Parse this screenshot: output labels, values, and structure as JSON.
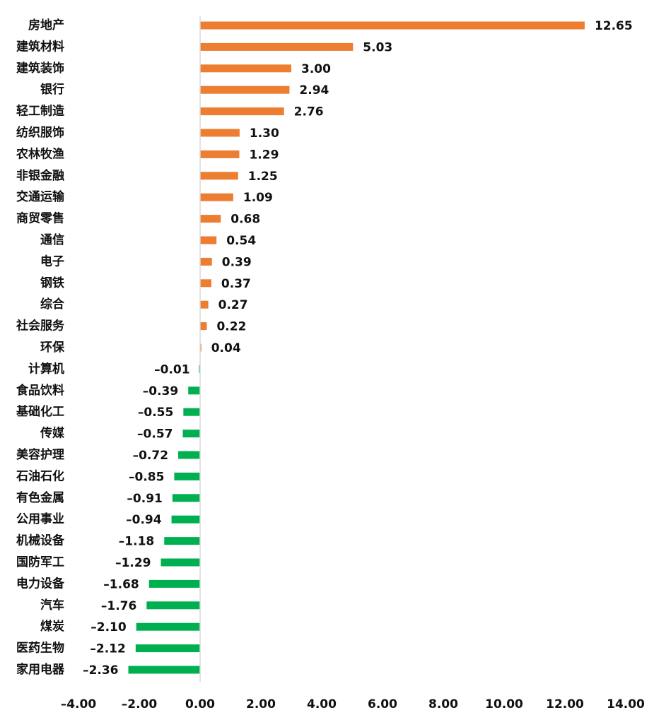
{
  "chart_data": {
    "type": "bar",
    "orientation": "horizontal",
    "categories": [
      "房地产",
      "建筑材料",
      "建筑装饰",
      "银行",
      "轻工制造",
      "纺织服饰",
      "农林牧渔",
      "非银金融",
      "交通运输",
      "商贸零售",
      "通信",
      "电子",
      "钢铁",
      "综合",
      "社会服务",
      "环保",
      "计算机",
      "食品饮料",
      "基础化工",
      "传媒",
      "美容护理",
      "石油石化",
      "有色金属",
      "公用事业",
      "机械设备",
      "国防军工",
      "电力设备",
      "汽车",
      "煤炭",
      "医药生物",
      "家用电器"
    ],
    "values": [
      12.65,
      5.03,
      3.0,
      2.94,
      2.76,
      1.3,
      1.29,
      1.25,
      1.09,
      0.68,
      0.54,
      0.39,
      0.37,
      0.27,
      0.22,
      0.04,
      -0.01,
      -0.39,
      -0.55,
      -0.57,
      -0.72,
      -0.85,
      -0.91,
      -0.94,
      -1.18,
      -1.29,
      -1.68,
      -1.76,
      -2.1,
      -2.12,
      -2.36
    ],
    "value_labels": [
      "12.65",
      "5.03",
      "3.00",
      "2.94",
      "2.76",
      "1.30",
      "1.29",
      "1.25",
      "1.09",
      "0.68",
      "0.54",
      "0.39",
      "0.37",
      "0.27",
      "0.22",
      "0.04",
      "–0.01",
      "–0.39",
      "–0.55",
      "–0.57",
      "–0.72",
      "–0.85",
      "–0.91",
      "–0.94",
      "–1.18",
      "–1.29",
      "–1.68",
      "–1.76",
      "–2.10",
      "–2.12",
      "–2.36"
    ],
    "x_ticks": [
      -4,
      -2,
      0,
      2,
      4,
      6,
      8,
      10,
      12,
      14
    ],
    "x_tick_labels": [
      "–4.00",
      "–2.00",
      "0.00",
      "2.00",
      "4.00",
      "6.00",
      "8.00",
      "10.00",
      "12.00",
      "14.00"
    ],
    "xlim": [
      -4,
      14
    ],
    "colors": {
      "positive": "#ed7d31",
      "negative": "#00b050",
      "axis": "#d9d9d9"
    },
    "grid": false,
    "legend": "none",
    "title": "",
    "xlabel": "",
    "ylabel": ""
  }
}
